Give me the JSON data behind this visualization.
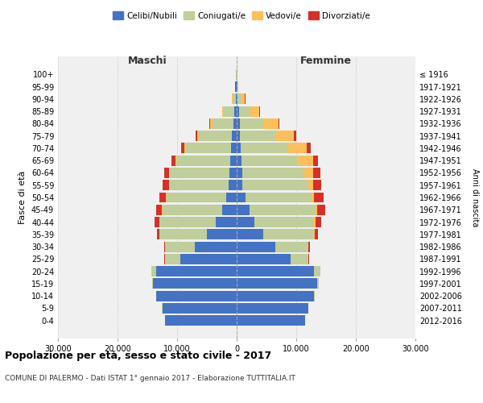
{
  "age_groups": [
    "0-4",
    "5-9",
    "10-14",
    "15-19",
    "20-24",
    "25-29",
    "30-34",
    "35-39",
    "40-44",
    "45-49",
    "50-54",
    "55-59",
    "60-64",
    "65-69",
    "70-74",
    "75-79",
    "80-84",
    "85-89",
    "90-94",
    "95-99",
    "100+"
  ],
  "birth_years": [
    "2012-2016",
    "2007-2011",
    "2002-2006",
    "1997-2001",
    "1992-1996",
    "1987-1991",
    "1982-1986",
    "1977-1981",
    "1972-1976",
    "1967-1971",
    "1962-1966",
    "1957-1961",
    "1952-1956",
    "1947-1951",
    "1942-1946",
    "1937-1941",
    "1932-1936",
    "1927-1931",
    "1922-1926",
    "1917-1921",
    "≤ 1916"
  ],
  "male": {
    "celibe": [
      12000,
      12500,
      13500,
      14000,
      13500,
      9500,
      7000,
      5000,
      3500,
      2500,
      1800,
      1300,
      1200,
      1100,
      1000,
      800,
      600,
      400,
      200,
      80,
      50
    ],
    "coniugato": [
      10,
      20,
      50,
      200,
      800,
      2500,
      5000,
      8000,
      9500,
      10000,
      10000,
      10000,
      10000,
      9000,
      7500,
      5500,
      3500,
      1800,
      500,
      100,
      30
    ],
    "vedovo": [
      0,
      0,
      0,
      1,
      2,
      5,
      10,
      20,
      30,
      50,
      60,
      80,
      100,
      200,
      300,
      300,
      300,
      200,
      100,
      20,
      5
    ],
    "divorziato": [
      0,
      0,
      0,
      10,
      30,
      100,
      200,
      400,
      700,
      900,
      1100,
      1000,
      900,
      700,
      500,
      300,
      150,
      50,
      10,
      5,
      2
    ]
  },
  "female": {
    "nubile": [
      11500,
      12000,
      13000,
      13500,
      13000,
      9000,
      6500,
      4500,
      3000,
      2200,
      1500,
      1000,
      900,
      800,
      700,
      600,
      500,
      350,
      200,
      80,
      50
    ],
    "coniugata": [
      15,
      30,
      80,
      300,
      1000,
      3000,
      5500,
      8500,
      10000,
      11000,
      11000,
      11000,
      10500,
      9500,
      8000,
      6000,
      4000,
      2000,
      600,
      100,
      30
    ],
    "vedova": [
      0,
      0,
      0,
      2,
      5,
      20,
      50,
      100,
      200,
      300,
      500,
      800,
      1500,
      2500,
      3000,
      3000,
      2500,
      1500,
      600,
      100,
      20
    ],
    "divorziata": [
      0,
      0,
      0,
      15,
      50,
      150,
      300,
      600,
      1000,
      1400,
      1600,
      1400,
      1200,
      900,
      700,
      400,
      200,
      80,
      20,
      5,
      2
    ]
  },
  "colors": {
    "celibe": "#4472C4",
    "coniugato": "#BFCE9A",
    "vedovo": "#FBBF5B",
    "divorziato": "#D73027"
  },
  "xlim": 30000,
  "xticks": [
    -30000,
    -20000,
    -10000,
    0,
    10000,
    20000,
    30000
  ],
  "xtick_labels": [
    "30.000",
    "20.000",
    "10.000",
    "0",
    "10.000",
    "20.000",
    "30.000"
  ],
  "title": "Popolazione per età, sesso e stato civile - 2017",
  "subtitle": "COMUNE DI PALERMO - Dati ISTAT 1° gennaio 2017 - Elaborazione TUTTITALIA.IT",
  "ylabel_left": "Fasce di età",
  "ylabel_right": "Anni di nascita",
  "label_maschi": "Maschi",
  "label_femmine": "Femmine",
  "legend_labels": [
    "Celibi/Nubili",
    "Coniugati/e",
    "Vedovi/e",
    "Divorziati/e"
  ],
  "background_color": "#ffffff",
  "grid_color": "#cccccc"
}
